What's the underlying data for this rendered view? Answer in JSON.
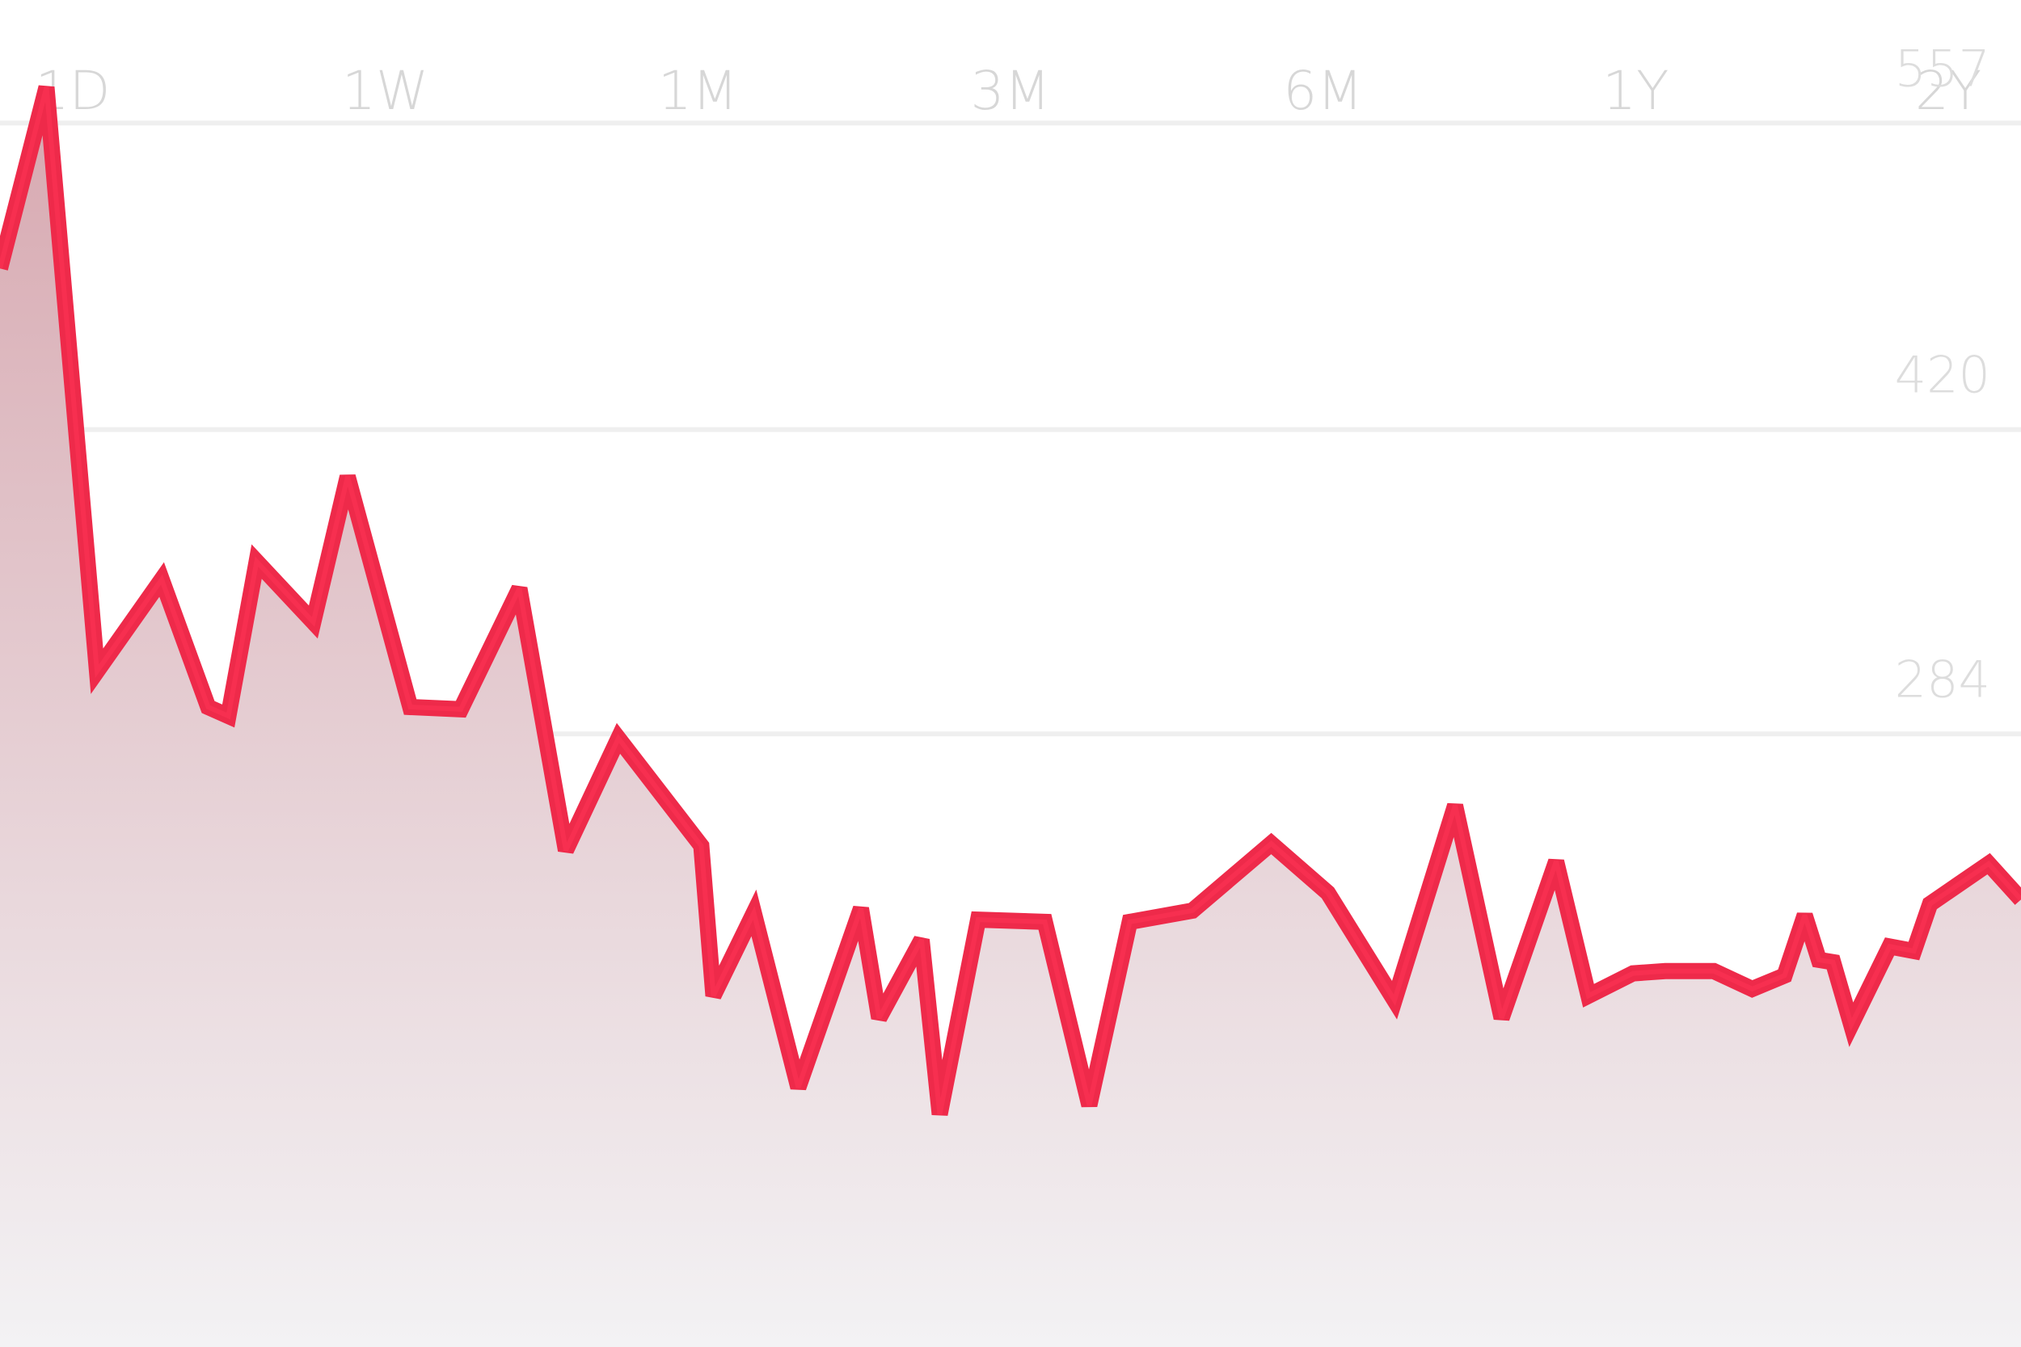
{
  "range_tabs": [
    {
      "label": "1D"
    },
    {
      "label": "1W"
    },
    {
      "label": "1M"
    },
    {
      "label": "3M"
    },
    {
      "label": "6M"
    },
    {
      "label": "1Y"
    },
    {
      "label": "2Y"
    }
  ],
  "colors": {
    "line": "#ee2a4a",
    "fill_top": "#d7a8b0",
    "fill_bottom": "#f3f2f4",
    "gridline": "#efefef",
    "tick_text": "#dddddd",
    "tab_text": "#d7d7d7"
  },
  "chart_data": {
    "type": "area",
    "title": "",
    "xlabel": "",
    "ylabel": "",
    "y_ticks": [
      557,
      420,
      284
    ],
    "ylim": [
      10,
      612
    ],
    "x_index_range": [
      0,
      100
    ],
    "grid": "horizontal",
    "series": [
      {
        "x": [
          0,
          2.3,
          4.8,
          8.0,
          10.3,
          11.3,
          12.7,
          15.5,
          17.2,
          20.3,
          22.8,
          25.7,
          28.0,
          30.6,
          34.7,
          35.3,
          37.3,
          39.5,
          42.6,
          43.5,
          45.6,
          46.5,
          48.4,
          51.7,
          53.9,
          55.9,
          59.0,
          62.9,
          65.7,
          69.0,
          72.0,
          74.3,
          77.0,
          78.6,
          80.8,
          82.4,
          84.8,
          86.7,
          88.3,
          89.3,
          90.0,
          90.7,
          91.6,
          93.5,
          94.7,
          95.5,
          98.4,
          100
        ],
        "values": [
          492,
          573,
          312,
          353,
          296,
          292,
          361,
          334,
          399,
          296,
          295,
          349,
          232,
          282,
          234,
          167,
          204,
          126,
          206,
          157,
          192,
          114,
          201,
          200,
          118,
          200,
          205,
          235,
          213,
          165,
          252,
          157,
          227,
          167,
          177,
          178,
          178,
          170,
          176,
          203,
          183,
          182,
          154,
          189,
          187,
          208,
          226,
          210
        ]
      }
    ]
  }
}
